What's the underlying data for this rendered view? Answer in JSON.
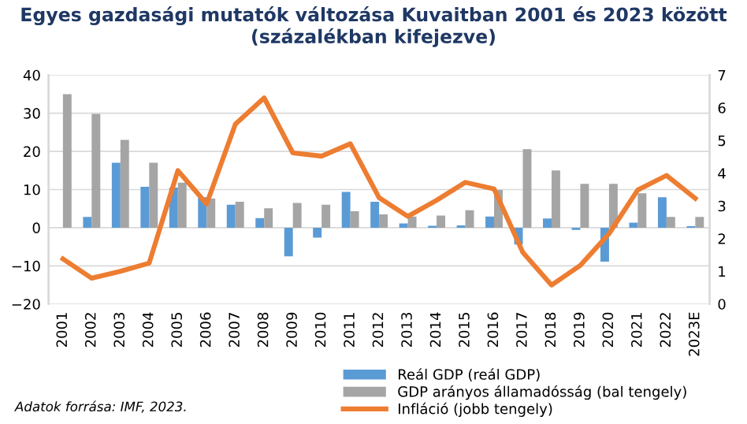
{
  "chart_data": {
    "type": "bar",
    "title": "Egyes gazdasági mutatók változása Kuvaitban 2001 és 2023 között\n(százalékban kifejezve)",
    "categories": [
      "2001",
      "2002",
      "2003",
      "2004",
      "2005",
      "2006",
      "2007",
      "2008",
      "2009",
      "2010",
      "2011",
      "2012",
      "2013",
      "2014",
      "2015",
      "2016",
      "2017",
      "2018",
      "2019",
      "2020",
      "2021",
      "2022",
      "2023E"
    ],
    "series": [
      {
        "name": "Reál GDP (reál GDP)",
        "color": "#5b9bd5",
        "values": [
          0,
          2.8,
          17,
          10.7,
          10.5,
          8,
          6,
          2.5,
          -7.5,
          -2.6,
          9.4,
          6.8,
          1.1,
          0.5,
          0.6,
          2.9,
          -4.4,
          2.4,
          -0.6,
          -8.9,
          1.3,
          8,
          0.4
        ]
      },
      {
        "name": "GDP arányos államadósság (bal tengely)",
        "color": "#a5a5a5",
        "values": [
          35,
          29.8,
          23,
          17,
          11.8,
          7.6,
          6.8,
          5.1,
          6.5,
          6,
          4.3,
          3.5,
          2.9,
          3.2,
          4.6,
          9.9,
          20.6,
          15,
          11.5,
          11.5,
          9,
          2.8,
          2.8
        ]
      },
      {
        "name": "Infláció (jobb tengely)",
        "type": "line",
        "axis": "y2",
        "color": "#ed7d31",
        "values": [
          1.38,
          0.79,
          1.0,
          1.25,
          4.08,
          3.06,
          5.5,
          6.3,
          4.62,
          4.52,
          4.9,
          3.25,
          2.68,
          3.17,
          3.72,
          3.52,
          1.58,
          0.58,
          1.18,
          2.15,
          3.49,
          3.93,
          3.23
        ]
      }
    ],
    "ylim": [
      -20,
      40
    ],
    "yticks": [
      -20,
      -10,
      0,
      10,
      20,
      30,
      40
    ],
    "y2lim": [
      0,
      7
    ],
    "y2ticks": [
      0,
      1,
      2,
      3,
      4,
      5,
      6,
      7
    ],
    "grid": "y",
    "legend": "bottom right",
    "annotations": [
      "Adatok forrása: IMF, 2023."
    ]
  }
}
